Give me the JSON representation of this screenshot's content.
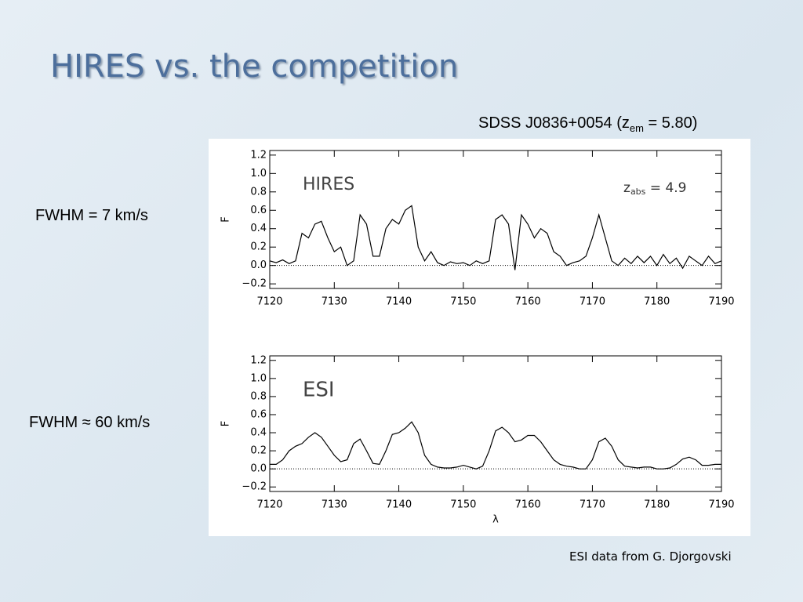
{
  "slide": {
    "title": "HIRES vs. the competition",
    "object": {
      "text": "SDSS J0836+0054 (z",
      "sub": "em",
      "rest": " = 5.80)"
    },
    "hires_resolution": "FWHM = 7 km/s",
    "esi_resolution": "FWHM ≈ 60 km/s",
    "credit": "ESI data from G. Djorgovski"
  },
  "chart_data": [
    {
      "type": "line",
      "label": "HIRES",
      "ylabel": "F",
      "annotation": {
        "text": "z",
        "sub": "abs",
        "rest": " = 4.9"
      },
      "color": "#000000",
      "x": [
        7120,
        7121,
        7122,
        7123,
        7124,
        7125,
        7126,
        7127,
        7128,
        7129,
        7130,
        7131,
        7132,
        7133,
        7134,
        7135,
        7136,
        7137,
        7138,
        7139,
        7140,
        7141,
        7142,
        7143,
        7144,
        7145,
        7146,
        7147,
        7148,
        7149,
        7150,
        7151,
        7152,
        7153,
        7154,
        7155,
        7156,
        7157,
        7158,
        7159,
        7160,
        7161,
        7162,
        7163,
        7164,
        7165,
        7166,
        7167,
        7168,
        7169,
        7170,
        7171,
        7172,
        7173,
        7174,
        7175,
        7176,
        7177,
        7178,
        7179,
        7180,
        7181,
        7182,
        7183,
        7184,
        7185,
        7186,
        7187,
        7188,
        7189,
        7190
      ],
      "values": [
        0.05,
        0.03,
        0.06,
        0.02,
        0.05,
        0.35,
        0.3,
        0.45,
        0.48,
        0.3,
        0.15,
        0.2,
        0.0,
        0.05,
        0.55,
        0.45,
        0.1,
        0.1,
        0.4,
        0.5,
        0.45,
        0.6,
        0.65,
        0.2,
        0.05,
        0.15,
        0.03,
        0.0,
        0.04,
        0.02,
        0.03,
        0.0,
        0.05,
        0.02,
        0.05,
        0.5,
        0.55,
        0.45,
        -0.05,
        0.55,
        0.45,
        0.3,
        0.4,
        0.35,
        0.15,
        0.1,
        0.0,
        0.03,
        0.05,
        0.1,
        0.3,
        0.55,
        0.3,
        0.05,
        0.0,
        0.08,
        0.02,
        0.1,
        0.03,
        0.1,
        0.0,
        0.12,
        0.02,
        0.08,
        -0.03,
        0.1,
        0.05,
        0.0,
        0.1,
        0.02,
        0.05
      ],
      "xlim": [
        7120,
        7190
      ],
      "xticks": [
        7120,
        7130,
        7140,
        7150,
        7160,
        7170,
        7180,
        7190
      ],
      "ylim": [
        -0.25,
        1.25
      ],
      "yticks": [
        {
          "value": -0.2,
          "label": "−0.2"
        },
        {
          "value": 0,
          "label": "0.0"
        },
        0.2,
        0.4,
        0.6,
        0.8,
        {
          "value": 1,
          "label": "1.0"
        },
        1.2
      ]
    },
    {
      "type": "line",
      "label": "ESI",
      "ylabel": "F",
      "xlabel": "λ",
      "color": "#000000",
      "x": [
        7120,
        7121,
        7122,
        7123,
        7124,
        7125,
        7126,
        7127,
        7128,
        7129,
        7130,
        7131,
        7132,
        7133,
        7134,
        7135,
        7136,
        7137,
        7138,
        7139,
        7140,
        7141,
        7142,
        7143,
        7144,
        7145,
        7146,
        7147,
        7148,
        7149,
        7150,
        7151,
        7152,
        7153,
        7154,
        7155,
        7156,
        7157,
        7158,
        7159,
        7160,
        7161,
        7162,
        7163,
        7164,
        7165,
        7166,
        7167,
        7168,
        7169,
        7170,
        7171,
        7172,
        7173,
        7174,
        7175,
        7176,
        7177,
        7178,
        7179,
        7180,
        7181,
        7182,
        7183,
        7184,
        7185,
        7186,
        7187,
        7188,
        7189,
        7190
      ],
      "values": [
        0.05,
        0.05,
        0.1,
        0.2,
        0.25,
        0.28,
        0.35,
        0.4,
        0.35,
        0.25,
        0.15,
        0.08,
        0.1,
        0.28,
        0.33,
        0.2,
        0.06,
        0.05,
        0.2,
        0.38,
        0.4,
        0.45,
        0.52,
        0.4,
        0.15,
        0.05,
        0.02,
        0.01,
        0.01,
        0.02,
        0.04,
        0.02,
        0.0,
        0.03,
        0.2,
        0.42,
        0.46,
        0.4,
        0.3,
        0.32,
        0.37,
        0.37,
        0.3,
        0.2,
        0.1,
        0.05,
        0.03,
        0.02,
        0.0,
        0.0,
        0.1,
        0.3,
        0.34,
        0.25,
        0.1,
        0.03,
        0.02,
        0.01,
        0.02,
        0.02,
        0.0,
        0.0,
        0.01,
        0.05,
        0.11,
        0.13,
        0.1,
        0.04,
        0.04,
        0.05,
        0.05
      ],
      "xlim": [
        7120,
        7190
      ],
      "xticks": [
        7120,
        7130,
        7140,
        7150,
        7160,
        7170,
        7180,
        7190
      ],
      "ylim": [
        -0.25,
        1.25
      ],
      "yticks": [
        {
          "value": -0.2,
          "label": "−0.2"
        },
        {
          "value": 0,
          "label": "0.0"
        },
        0.2,
        0.4,
        0.6,
        0.8,
        {
          "value": 1,
          "label": "1.0"
        },
        1.2
      ]
    }
  ]
}
